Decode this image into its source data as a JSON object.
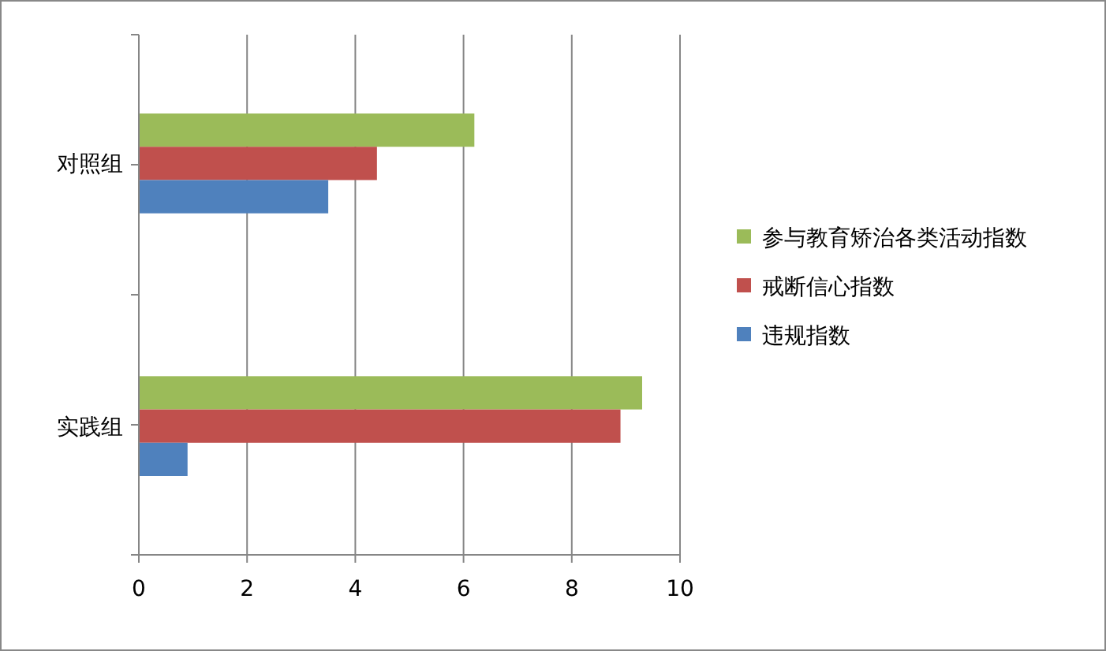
{
  "chart_data": {
    "type": "bar",
    "orientation": "horizontal",
    "categories": [
      "对照组",
      "实践组"
    ],
    "series": [
      {
        "name": "参与教育矫治各类活动指数",
        "color": "#9bbb59",
        "values": [
          6.2,
          9.3
        ]
      },
      {
        "name": "戒断信心指数",
        "color": "#c0504d",
        "values": [
          4.4,
          8.9
        ]
      },
      {
        "name": "违规指数",
        "color": "#4f81bd",
        "values": [
          3.5,
          0.9
        ]
      }
    ],
    "xlim": [
      0,
      10
    ],
    "xticks": [
      0,
      2,
      4,
      6,
      8,
      10
    ],
    "grid": "x",
    "legend": "right"
  }
}
